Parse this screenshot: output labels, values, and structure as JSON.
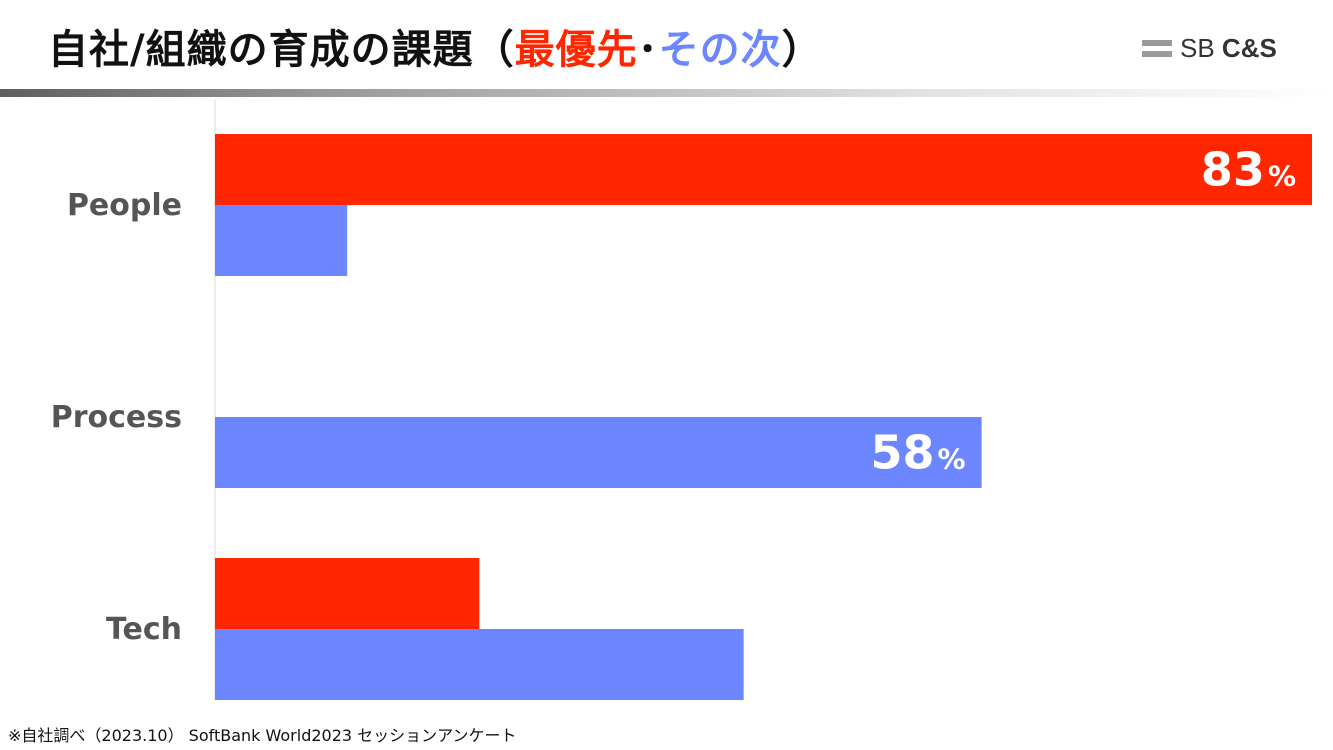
{
  "title": {
    "prefix": "自社/組織の育成の課題（",
    "highlight1": "最優先",
    "separator": "･",
    "highlight2": "その次",
    "suffix": "）"
  },
  "logo": {
    "text_light": "SB ",
    "text_bold": "C&S"
  },
  "colors": {
    "primary": "#ff2600",
    "secondary": "#6b86ff",
    "label": "#555555"
  },
  "chart_data": {
    "type": "bar",
    "orientation": "horizontal",
    "categories": [
      "People",
      "Process",
      "Tech"
    ],
    "series": [
      {
        "name": "最優先",
        "color": "#ff2600",
        "values": [
          83,
          0,
          20
        ]
      },
      {
        "name": "その次",
        "color": "#6b86ff",
        "values": [
          10,
          58,
          40
        ]
      }
    ],
    "data_labels": [
      {
        "category": "People",
        "series": "最優先",
        "value": "83",
        "unit": "%"
      },
      {
        "category": "Process",
        "series": "その次",
        "value": "58",
        "unit": "%"
      }
    ],
    "xlim": [
      0,
      83
    ],
    "title": "",
    "xlabel": "",
    "ylabel": ""
  },
  "footnote": "※自社調べ（2023.10） SoftBank World2023 セッションアンケート"
}
